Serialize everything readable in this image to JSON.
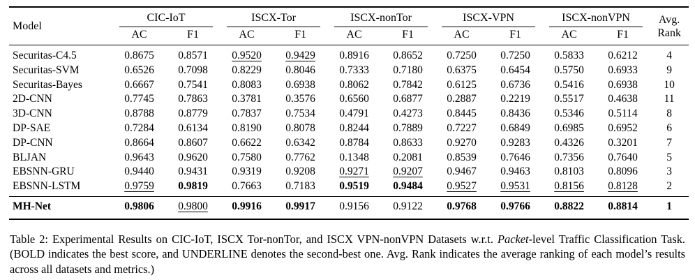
{
  "table": {
    "header": {
      "model": "Model",
      "groups": [
        "CIC-IoT",
        "ISCX-Tor",
        "ISCX-nonTor",
        "ISCX-VPN",
        "ISCX-nonVPN"
      ],
      "metrics": [
        "AC",
        "F1"
      ],
      "avg_rank": "Avg. Rank"
    },
    "style_legend": {
      "b": "bold = best score",
      "u": "underline = second-best score"
    },
    "rows": [
      {
        "model": "Securitas-C4.5",
        "model_style": "",
        "values": [
          "0.8675",
          "0.8571",
          "0.9520",
          "0.9429",
          "0.8916",
          "0.8652",
          "0.7250",
          "0.7250",
          "0.5833",
          "0.6212"
        ],
        "styles": [
          "",
          "",
          "u",
          "u",
          "",
          "",
          "",
          "",
          "",
          ""
        ],
        "rank": "4",
        "rank_style": ""
      },
      {
        "model": "Securitas-SVM",
        "model_style": "",
        "values": [
          "0.6526",
          "0.7098",
          "0.8229",
          "0.8046",
          "0.7333",
          "0.7180",
          "0.6375",
          "0.6454",
          "0.5750",
          "0.6933"
        ],
        "styles": [
          "",
          "",
          "",
          "",
          "",
          "",
          "",
          "",
          "",
          ""
        ],
        "rank": "9",
        "rank_style": ""
      },
      {
        "model": "Securitas-Bayes",
        "model_style": "",
        "values": [
          "0.6667",
          "0.7541",
          "0.8083",
          "0.6938",
          "0.8062",
          "0.7842",
          "0.6125",
          "0.6736",
          "0.5416",
          "0.6938"
        ],
        "styles": [
          "",
          "",
          "",
          "",
          "",
          "",
          "",
          "",
          "",
          ""
        ],
        "rank": "10",
        "rank_style": ""
      },
      {
        "model": "2D-CNN",
        "model_style": "",
        "values": [
          "0.7745",
          "0.7863",
          "0.3781",
          "0.3576",
          "0.6560",
          "0.6877",
          "0.2887",
          "0.2219",
          "0.5517",
          "0.4638"
        ],
        "styles": [
          "",
          "",
          "",
          "",
          "",
          "",
          "",
          "",
          "",
          ""
        ],
        "rank": "11",
        "rank_style": ""
      },
      {
        "model": "3D-CNN",
        "model_style": "",
        "values": [
          "0.8788",
          "0.8779",
          "0.7837",
          "0.7534",
          "0.4791",
          "0.4273",
          "0.8445",
          "0.8436",
          "0.5346",
          "0.5114"
        ],
        "styles": [
          "",
          "",
          "",
          "",
          "",
          "",
          "",
          "",
          "",
          ""
        ],
        "rank": "8",
        "rank_style": ""
      },
      {
        "model": "DP-SAE",
        "model_style": "",
        "values": [
          "0.7284",
          "0.6134",
          "0.8190",
          "0.8078",
          "0.8244",
          "0.7889",
          "0.7227",
          "0.6849",
          "0.6985",
          "0.6952"
        ],
        "styles": [
          "",
          "",
          "",
          "",
          "",
          "",
          "",
          "",
          "",
          ""
        ],
        "rank": "6",
        "rank_style": ""
      },
      {
        "model": "DP-CNN",
        "model_style": "",
        "values": [
          "0.8664",
          "0.8607",
          "0.6622",
          "0.6342",
          "0.8784",
          "0.8633",
          "0.9270",
          "0.9283",
          "0.4326",
          "0.3201"
        ],
        "styles": [
          "",
          "",
          "",
          "",
          "",
          "",
          "",
          "",
          "",
          ""
        ],
        "rank": "7",
        "rank_style": ""
      },
      {
        "model": "BLJAN",
        "model_style": "",
        "values": [
          "0.9643",
          "0.9620",
          "0.7580",
          "0.7762",
          "0.1348",
          "0.2081",
          "0.8539",
          "0.7646",
          "0.7356",
          "0.7640"
        ],
        "styles": [
          "",
          "",
          "",
          "",
          "",
          "",
          "",
          "",
          "",
          ""
        ],
        "rank": "5",
        "rank_style": ""
      },
      {
        "model": "EBSNN-GRU",
        "model_style": "",
        "values": [
          "0.9440",
          "0.9431",
          "0.9319",
          "0.9208",
          "0.9271",
          "0.9207",
          "0.9467",
          "0.9463",
          "0.8103",
          "0.8096"
        ],
        "styles": [
          "",
          "",
          "",
          "",
          "u",
          "u",
          "",
          "",
          "",
          ""
        ],
        "rank": "3",
        "rank_style": ""
      },
      {
        "model": "EBSNN-LSTM",
        "model_style": "",
        "values": [
          "0.9759",
          "0.9819",
          "0.7663",
          "0.7183",
          "0.9519",
          "0.9484",
          "0.9527",
          "0.9531",
          "0.8156",
          "0.8128"
        ],
        "styles": [
          "u",
          "b",
          "",
          "",
          "b",
          "b",
          "u",
          "u",
          "u",
          "u"
        ],
        "rank": "2",
        "rank_style": ""
      }
    ],
    "footer": {
      "model": "MH-Net",
      "model_style": "b",
      "values": [
        "0.9806",
        "0.9800",
        "0.9916",
        "0.9917",
        "0.9156",
        "0.9122",
        "0.9768",
        "0.9766",
        "0.8822",
        "0.8814"
      ],
      "styles": [
        "b",
        "u",
        "b",
        "b",
        "",
        "",
        "b",
        "b",
        "b",
        "b"
      ],
      "rank": "1",
      "rank_style": "b"
    }
  },
  "caption": {
    "part1": "Table 2: Experimental Results on CIC-IoT, ISCX Tor-nonTor, and ISCX VPN-nonVPN Datasets w.r.t. ",
    "italic": "Packet",
    "part2": "-level Traffic Classification Task. (BOLD indicates the best score, and UNDERLINE denotes the second-best one. Avg. Rank indicates the average ranking of each model’s results across all datasets and metrics.)"
  }
}
